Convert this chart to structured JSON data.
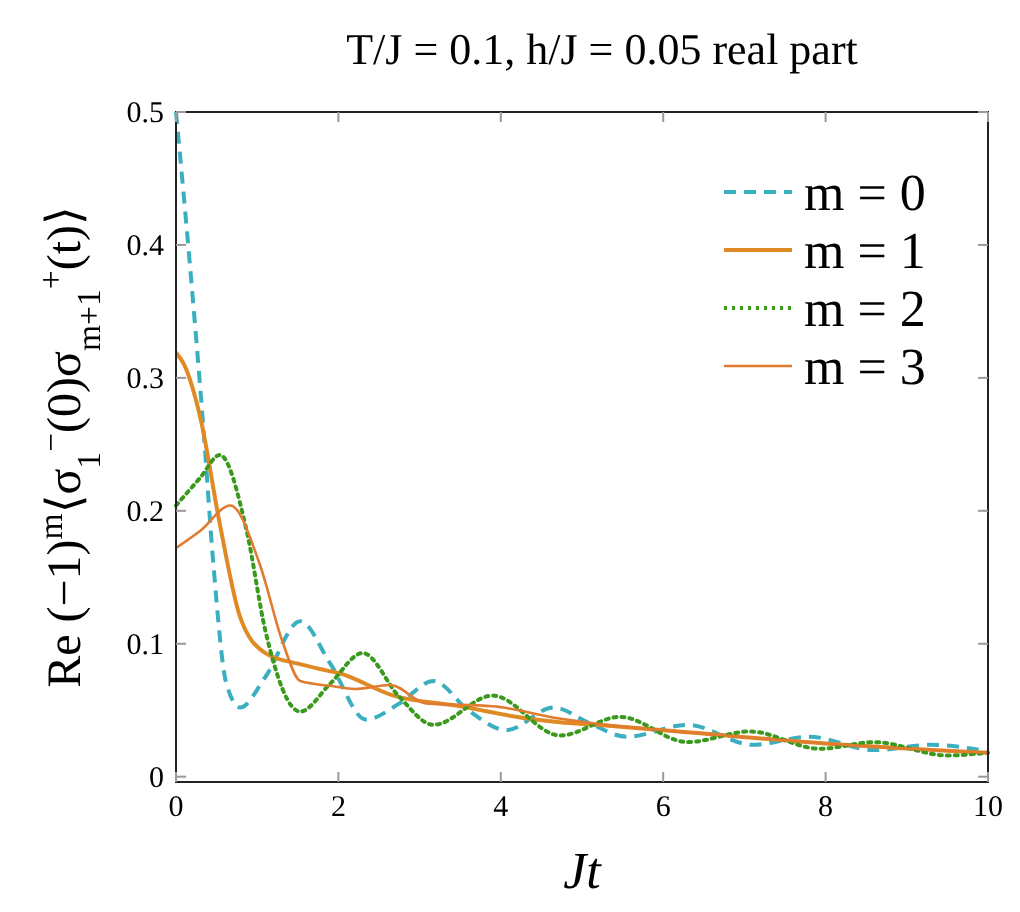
{
  "chart_data": {
    "type": "line",
    "title": "T/J = 0.1, h/J = 0.05 real part",
    "xlabel": "Jt",
    "ylabel": "Re (−1)$^{m}$⟨σ$_{1}$$^{−}$(0)σ$_{m+1}$$^{+}$(t)⟩",
    "xlim": [
      0,
      10
    ],
    "ylim": [
      -0.004,
      0.5
    ],
    "xticks": [
      0,
      2,
      4,
      6,
      8,
      10
    ],
    "yticks": [
      0,
      0.1,
      0.2,
      0.3,
      0.4,
      0.5
    ],
    "grid": false,
    "legend": "top right",
    "marker": "none",
    "series": [
      {
        "name": "m = 0",
        "color": "#3aafc0",
        "line_style": "dashed",
        "x": [
          0,
          0.17,
          0.34,
          0.46,
          0.62,
          0.79,
          1.1,
          1.53,
          1.9,
          2.34,
          2.75,
          3.17,
          3.6,
          4.07,
          4.65,
          5.1,
          5.55,
          6.3,
          7.1,
          7.8,
          8.6,
          9.3,
          10
        ],
        "values": [
          0.5,
          0.386,
          0.26,
          0.16,
          0.07,
          0.052,
          0.075,
          0.117,
          0.085,
          0.043,
          0.055,
          0.072,
          0.05,
          0.035,
          0.052,
          0.04,
          0.03,
          0.039,
          0.024,
          0.03,
          0.02,
          0.024,
          0.019
        ]
      },
      {
        "name": "m = 1",
        "color": "#e08a25",
        "line_style": "solid",
        "x": [
          0,
          0.1,
          0.3,
          0.54,
          0.79,
          1.1,
          1.5,
          1.85,
          2.0,
          2.68,
          3.5,
          4.3,
          4.73,
          5.17,
          6.37,
          8.0,
          10
        ],
        "values": [
          0.319,
          0.31,
          0.27,
          0.19,
          0.12,
          0.093,
          0.085,
          0.08,
          0.078,
          0.061,
          0.053,
          0.044,
          0.041,
          0.039,
          0.033,
          0.025,
          0.018
        ]
      },
      {
        "name": "m = 2",
        "color": "#3a9a1e",
        "line_style": "dotted",
        "x": [
          0,
          0.3,
          0.54,
          0.87,
          1.1,
          1.53,
          1.9,
          2.3,
          2.75,
          3.17,
          3.9,
          4.73,
          5.47,
          6.3,
          7.07,
          7.93,
          8.6,
          9.5,
          10
        ],
        "values": [
          0.204,
          0.225,
          0.242,
          0.185,
          0.11,
          0.049,
          0.07,
          0.093,
          0.06,
          0.039,
          0.061,
          0.031,
          0.045,
          0.026,
          0.034,
          0.021,
          0.026,
          0.016,
          0.018
        ]
      },
      {
        "name": "m = 3",
        "color": "#e07b30",
        "line_style": "solid",
        "x": [
          0,
          0.3,
          0.67,
          1.03,
          1.32,
          1.53,
          1.94,
          2.2,
          2.64,
          3.08,
          3.9,
          4.7,
          5.17,
          6.37,
          8.0,
          10
        ],
        "values": [
          0.172,
          0.185,
          0.204,
          0.16,
          0.1,
          0.072,
          0.068,
          0.066,
          0.069,
          0.055,
          0.053,
          0.044,
          0.04,
          0.033,
          0.025,
          0.018
        ]
      }
    ]
  }
}
